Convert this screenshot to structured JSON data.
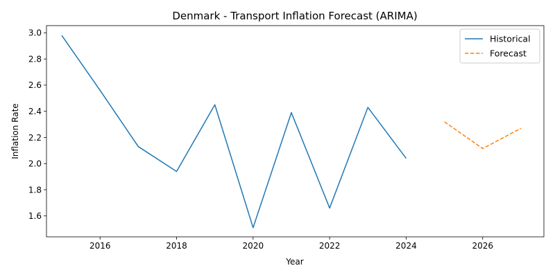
{
  "chart_data": {
    "type": "line",
    "title": "Denmark - Transport Inflation Forecast (ARIMA)",
    "xlabel": "Year",
    "ylabel": "Inflation Rate",
    "xlim": [
      2014.6,
      2027.6
    ],
    "ylim": [
      1.44,
      3.055
    ],
    "xticks": [
      2016,
      2018,
      2020,
      2022,
      2024,
      2026
    ],
    "yticks": [
      1.6,
      1.8,
      2.0,
      2.2,
      2.4,
      2.6,
      2.8,
      3.0
    ],
    "xtick_labels": [
      "2016",
      "2018",
      "2020",
      "2022",
      "2024",
      "2026"
    ],
    "ytick_labels": [
      "1.6",
      "1.8",
      "2.0",
      "2.2",
      "2.4",
      "2.6",
      "2.8",
      "3.0"
    ],
    "grid": false,
    "legend_position": "top-right",
    "series": [
      {
        "name": "Historical",
        "style": "solid",
        "color": "#1f77b4",
        "x": [
          2015,
          2016,
          2017,
          2018,
          2019,
          2020,
          2021,
          2022,
          2023,
          2024
        ],
        "y": [
          2.98,
          2.56,
          2.13,
          1.94,
          2.45,
          1.51,
          2.39,
          1.66,
          2.43,
          2.04
        ]
      },
      {
        "name": "Forecast",
        "style": "dashed",
        "color": "#ff7f0e",
        "x": [
          2025,
          2026,
          2027
        ],
        "y": [
          2.32,
          2.115,
          2.27
        ]
      }
    ]
  }
}
